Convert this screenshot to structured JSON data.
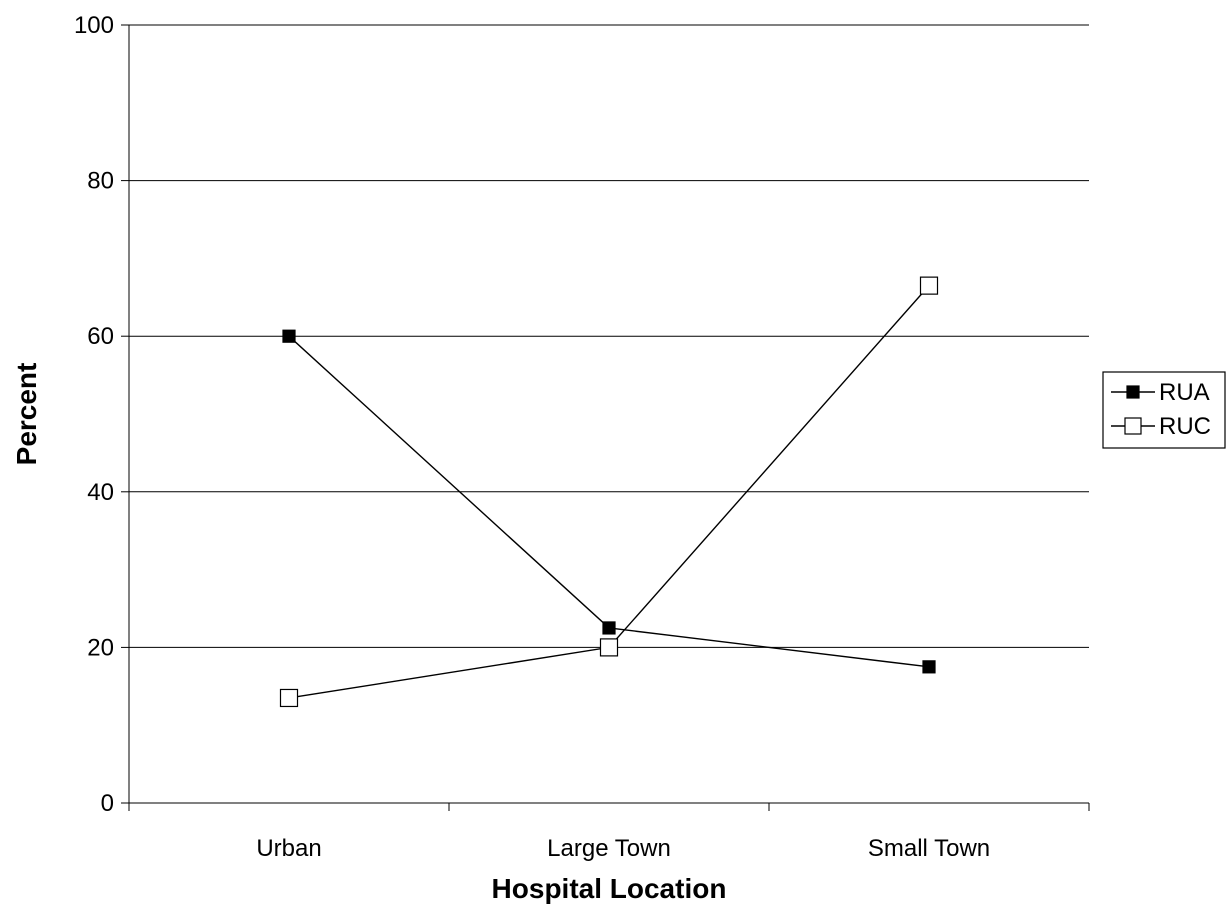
{
  "chart_data": {
    "type": "line",
    "title": "",
    "xlabel": "Hospital Location",
    "ylabel": "Percent",
    "categories": [
      "Urban",
      "Large Town",
      "Small Town"
    ],
    "ylim": [
      0,
      100
    ],
    "yticks": [
      0,
      20,
      40,
      60,
      80,
      100
    ],
    "grid": true,
    "legend_position": "right",
    "series": [
      {
        "name": "RUA",
        "values": [
          60,
          22.5,
          17.5
        ],
        "marker": "filled-square",
        "color": "#000000"
      },
      {
        "name": "RUC",
        "values": [
          13.5,
          20,
          66.5
        ],
        "marker": "open-square",
        "color": "#000000"
      }
    ]
  }
}
